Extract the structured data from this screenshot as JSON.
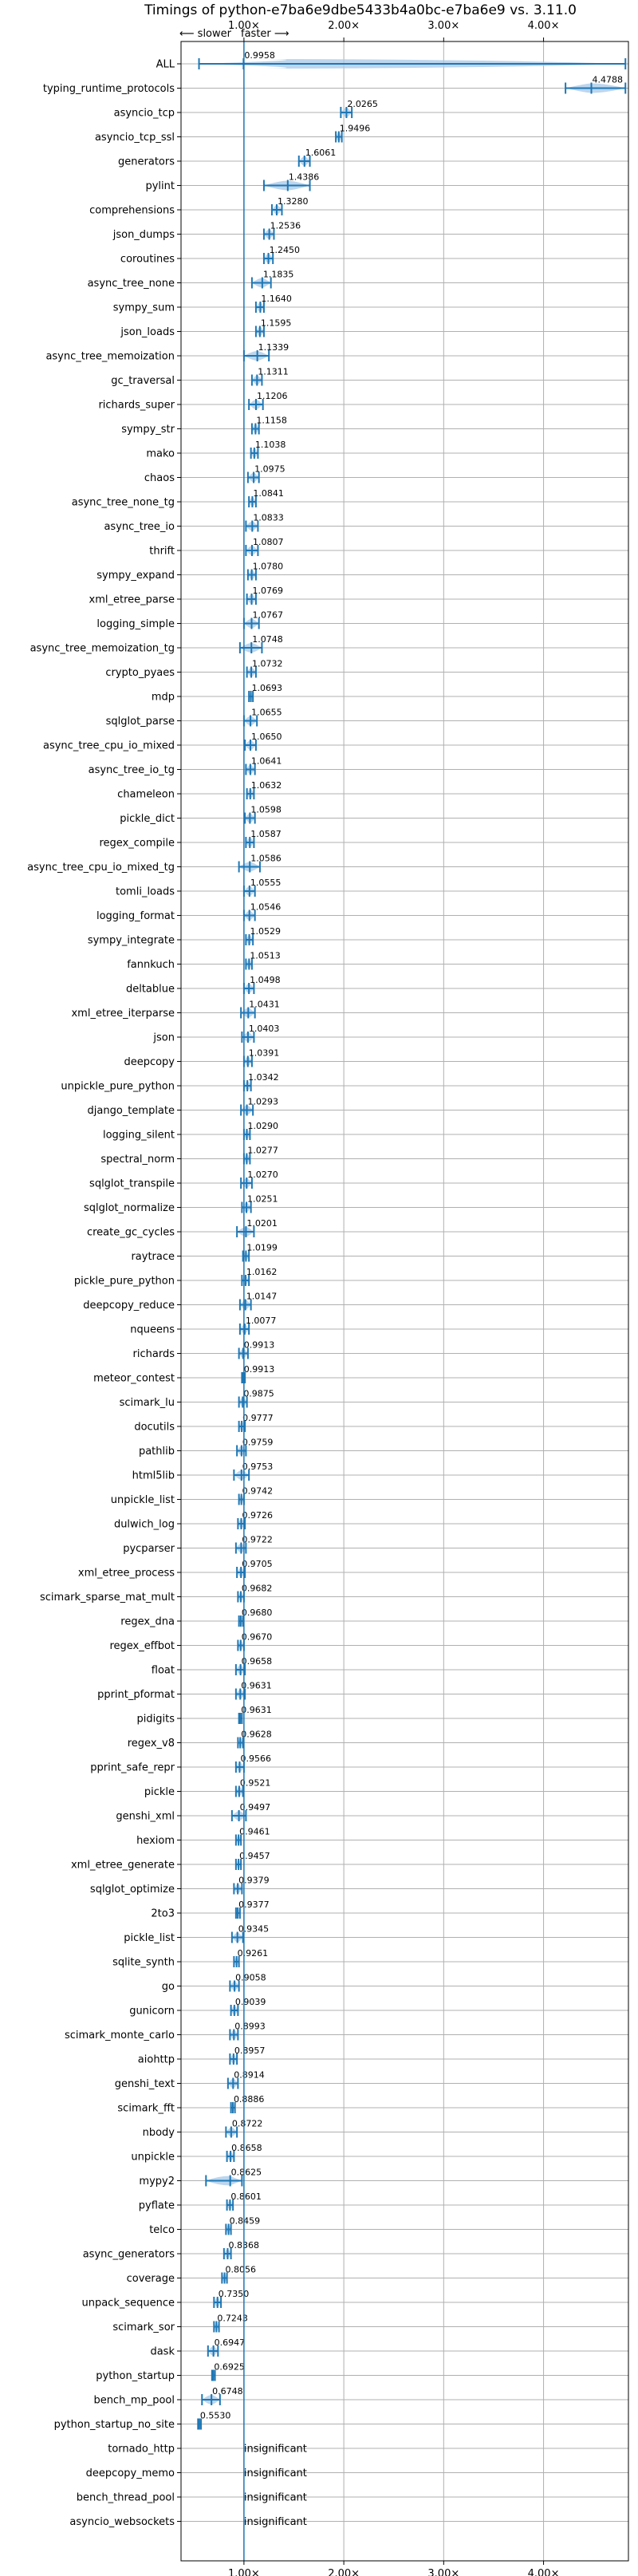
{
  "chart_data": {
    "type": "violin",
    "title": "Timings of python-e7ba6e9dbe5433b4a0bc-e7ba6e9 vs. 3.11.0",
    "direction_labels": {
      "slower": "⟵ slower",
      "faster": "faster ⟶"
    },
    "xticks": [
      "1.00×",
      "2.00×",
      "3.00×",
      "4.00×"
    ],
    "xtick_values": [
      1,
      2,
      3,
      4
    ],
    "xlim": [
      0.37,
      4.85
    ],
    "reference_line": 1.0,
    "grid": true,
    "insignificant_label": "insignificant",
    "colors": {
      "violin": "#a6c8e8",
      "mean": "#1f77b4",
      "axis": "#000000",
      "grid": "#b0b0b0"
    },
    "benchmarks": [
      {
        "name": "ALL",
        "value": 0.9958,
        "label": "0.9958",
        "lo": 0.55,
        "hi": 4.82
      },
      {
        "name": "typing_runtime_protocols",
        "value": 4.4788,
        "label": "4.4788",
        "lo": 4.22,
        "hi": 4.82
      },
      {
        "name": "asyncio_tcp",
        "value": 2.0265,
        "label": "2.0265",
        "lo": 1.97,
        "hi": 2.08
      },
      {
        "name": "asyncio_tcp_ssl",
        "value": 1.9496,
        "label": "1.9496",
        "lo": 1.92,
        "hi": 1.98
      },
      {
        "name": "generators",
        "value": 1.6061,
        "label": "1.6061",
        "lo": 1.55,
        "hi": 1.66
      },
      {
        "name": "pylint",
        "value": 1.4386,
        "label": "1.4386",
        "lo": 1.2,
        "hi": 1.66
      },
      {
        "name": "comprehensions",
        "value": 1.328,
        "label": "1.3280",
        "lo": 1.28,
        "hi": 1.38
      },
      {
        "name": "json_dumps",
        "value": 1.2536,
        "label": "1.2536",
        "lo": 1.2,
        "hi": 1.3
      },
      {
        "name": "coroutines",
        "value": 1.245,
        "label": "1.2450",
        "lo": 1.2,
        "hi": 1.29
      },
      {
        "name": "async_tree_none",
        "value": 1.1835,
        "label": "1.1835",
        "lo": 1.08,
        "hi": 1.27
      },
      {
        "name": "sympy_sum",
        "value": 1.164,
        "label": "1.1640",
        "lo": 1.12,
        "hi": 1.2
      },
      {
        "name": "json_loads",
        "value": 1.1595,
        "label": "1.1595",
        "lo": 1.12,
        "hi": 1.2
      },
      {
        "name": "async_tree_memoization",
        "value": 1.1339,
        "label": "1.1339",
        "lo": 1.0,
        "hi": 1.25
      },
      {
        "name": "gc_traversal",
        "value": 1.1311,
        "label": "1.1311",
        "lo": 1.08,
        "hi": 1.18
      },
      {
        "name": "richards_super",
        "value": 1.1206,
        "label": "1.1206",
        "lo": 1.05,
        "hi": 1.19
      },
      {
        "name": "sympy_str",
        "value": 1.1158,
        "label": "1.1158",
        "lo": 1.08,
        "hi": 1.15
      },
      {
        "name": "mako",
        "value": 1.1038,
        "label": "1.1038",
        "lo": 1.07,
        "hi": 1.14
      },
      {
        "name": "chaos",
        "value": 1.0975,
        "label": "1.0975",
        "lo": 1.04,
        "hi": 1.15
      },
      {
        "name": "async_tree_none_tg",
        "value": 1.0841,
        "label": "1.0841",
        "lo": 1.05,
        "hi": 1.12
      },
      {
        "name": "async_tree_io",
        "value": 1.0833,
        "label": "1.0833",
        "lo": 1.02,
        "hi": 1.14
      },
      {
        "name": "thrift",
        "value": 1.0807,
        "label": "1.0807",
        "lo": 1.02,
        "hi": 1.14
      },
      {
        "name": "sympy_expand",
        "value": 1.078,
        "label": "1.0780",
        "lo": 1.04,
        "hi": 1.12
      },
      {
        "name": "xml_etree_parse",
        "value": 1.0769,
        "label": "1.0769",
        "lo": 1.03,
        "hi": 1.12
      },
      {
        "name": "logging_simple",
        "value": 1.0767,
        "label": "1.0767",
        "lo": 1.0,
        "hi": 1.15
      },
      {
        "name": "async_tree_memoization_tg",
        "value": 1.0748,
        "label": "1.0748",
        "lo": 0.96,
        "hi": 1.18
      },
      {
        "name": "crypto_pyaes",
        "value": 1.0732,
        "label": "1.0732",
        "lo": 1.03,
        "hi": 1.12
      },
      {
        "name": "mdp",
        "value": 1.0693,
        "label": "1.0693",
        "lo": 1.05,
        "hi": 1.09
      },
      {
        "name": "sqlglot_parse",
        "value": 1.0655,
        "label": "1.0655",
        "lo": 1.0,
        "hi": 1.13
      },
      {
        "name": "async_tree_cpu_io_mixed",
        "value": 1.065,
        "label": "1.0650",
        "lo": 1.01,
        "hi": 1.12
      },
      {
        "name": "async_tree_io_tg",
        "value": 1.0641,
        "label": "1.0641",
        "lo": 1.02,
        "hi": 1.11
      },
      {
        "name": "chameleon",
        "value": 1.0632,
        "label": "1.0632",
        "lo": 1.03,
        "hi": 1.1
      },
      {
        "name": "pickle_dict",
        "value": 1.0598,
        "label": "1.0598",
        "lo": 1.01,
        "hi": 1.11
      },
      {
        "name": "regex_compile",
        "value": 1.0587,
        "label": "1.0587",
        "lo": 1.02,
        "hi": 1.1
      },
      {
        "name": "async_tree_cpu_io_mixed_tg",
        "value": 1.0586,
        "label": "1.0586",
        "lo": 0.95,
        "hi": 1.16
      },
      {
        "name": "tomli_loads",
        "value": 1.0555,
        "label": "1.0555",
        "lo": 1.0,
        "hi": 1.11
      },
      {
        "name": "logging_format",
        "value": 1.0546,
        "label": "1.0546",
        "lo": 1.0,
        "hi": 1.11
      },
      {
        "name": "sympy_integrate",
        "value": 1.0529,
        "label": "1.0529",
        "lo": 1.02,
        "hi": 1.09
      },
      {
        "name": "fannkuch",
        "value": 1.0513,
        "label": "1.0513",
        "lo": 1.02,
        "hi": 1.08
      },
      {
        "name": "deltablue",
        "value": 1.0498,
        "label": "1.0498",
        "lo": 1.0,
        "hi": 1.1
      },
      {
        "name": "xml_etree_iterparse",
        "value": 1.0431,
        "label": "1.0431",
        "lo": 0.97,
        "hi": 1.11
      },
      {
        "name": "json",
        "value": 1.0403,
        "label": "1.0403",
        "lo": 0.98,
        "hi": 1.1
      },
      {
        "name": "deepcopy",
        "value": 1.0391,
        "label": "1.0391",
        "lo": 1.0,
        "hi": 1.08
      },
      {
        "name": "unpickle_pure_python",
        "value": 1.0342,
        "label": "1.0342",
        "lo": 1.0,
        "hi": 1.07
      },
      {
        "name": "django_template",
        "value": 1.0293,
        "label": "1.0293",
        "lo": 0.97,
        "hi": 1.09
      },
      {
        "name": "logging_silent",
        "value": 1.029,
        "label": "1.0290",
        "lo": 1.0,
        "hi": 1.06
      },
      {
        "name": "spectral_norm",
        "value": 1.0277,
        "label": "1.0277",
        "lo": 1.0,
        "hi": 1.06
      },
      {
        "name": "sqlglot_transpile",
        "value": 1.027,
        "label": "1.0270",
        "lo": 0.97,
        "hi": 1.08
      },
      {
        "name": "sqlglot_normalize",
        "value": 1.0251,
        "label": "1.0251",
        "lo": 0.98,
        "hi": 1.07
      },
      {
        "name": "create_gc_cycles",
        "value": 1.0201,
        "label": "1.0201",
        "lo": 0.93,
        "hi": 1.1
      },
      {
        "name": "raytrace",
        "value": 1.0199,
        "label": "1.0199",
        "lo": 0.99,
        "hi": 1.05
      },
      {
        "name": "pickle_pure_python",
        "value": 1.0162,
        "label": "1.0162",
        "lo": 0.98,
        "hi": 1.05
      },
      {
        "name": "deepcopy_reduce",
        "value": 1.0147,
        "label": "1.0147",
        "lo": 0.96,
        "hi": 1.07
      },
      {
        "name": "nqueens",
        "value": 1.0077,
        "label": "1.0077",
        "lo": 0.96,
        "hi": 1.05
      },
      {
        "name": "richards",
        "value": 0.9913,
        "label": "0.9913",
        "lo": 0.95,
        "hi": 1.04
      },
      {
        "name": "meteor_contest",
        "value": 0.9913,
        "label": "0.9913",
        "lo": 0.98,
        "hi": 1.01
      },
      {
        "name": "scimark_lu",
        "value": 0.9875,
        "label": "0.9875",
        "lo": 0.95,
        "hi": 1.03
      },
      {
        "name": "docutils",
        "value": 0.9777,
        "label": "0.9777",
        "lo": 0.95,
        "hi": 1.01
      },
      {
        "name": "pathlib",
        "value": 0.9759,
        "label": "0.9759",
        "lo": 0.93,
        "hi": 1.02
      },
      {
        "name": "html5lib",
        "value": 0.9753,
        "label": "0.9753",
        "lo": 0.9,
        "hi": 1.05
      },
      {
        "name": "unpickle_list",
        "value": 0.9742,
        "label": "0.9742",
        "lo": 0.95,
        "hi": 1.0
      },
      {
        "name": "dulwich_log",
        "value": 0.9726,
        "label": "0.9726",
        "lo": 0.94,
        "hi": 1.01
      },
      {
        "name": "pycparser",
        "value": 0.9722,
        "label": "0.9722",
        "lo": 0.92,
        "hi": 1.02
      },
      {
        "name": "xml_etree_process",
        "value": 0.9705,
        "label": "0.9705",
        "lo": 0.93,
        "hi": 1.01
      },
      {
        "name": "scimark_sparse_mat_mult",
        "value": 0.9682,
        "label": "0.9682",
        "lo": 0.94,
        "hi": 1.0
      },
      {
        "name": "regex_dna",
        "value": 0.968,
        "label": "0.9680",
        "lo": 0.95,
        "hi": 0.99
      },
      {
        "name": "regex_effbot",
        "value": 0.967,
        "label": "0.9670",
        "lo": 0.94,
        "hi": 1.0
      },
      {
        "name": "float",
        "value": 0.9658,
        "label": "0.9658",
        "lo": 0.92,
        "hi": 1.01
      },
      {
        "name": "pprint_pformat",
        "value": 0.9631,
        "label": "0.9631",
        "lo": 0.92,
        "hi": 1.01
      },
      {
        "name": "pidigits",
        "value": 0.9631,
        "label": "0.9631",
        "lo": 0.95,
        "hi": 0.98
      },
      {
        "name": "regex_v8",
        "value": 0.9628,
        "label": "0.9628",
        "lo": 0.94,
        "hi": 0.99
      },
      {
        "name": "pprint_safe_repr",
        "value": 0.9566,
        "label": "0.9566",
        "lo": 0.92,
        "hi": 1.0
      },
      {
        "name": "pickle",
        "value": 0.9521,
        "label": "0.9521",
        "lo": 0.92,
        "hi": 0.99
      },
      {
        "name": "genshi_xml",
        "value": 0.9497,
        "label": "0.9497",
        "lo": 0.88,
        "hi": 1.02
      },
      {
        "name": "hexiom",
        "value": 0.9461,
        "label": "0.9461",
        "lo": 0.92,
        "hi": 0.97
      },
      {
        "name": "xml_etree_generate",
        "value": 0.9457,
        "label": "0.9457",
        "lo": 0.92,
        "hi": 0.97
      },
      {
        "name": "sqlglot_optimize",
        "value": 0.9379,
        "label": "0.9379",
        "lo": 0.9,
        "hi": 0.98
      },
      {
        "name": "2to3",
        "value": 0.9377,
        "label": "0.9377",
        "lo": 0.92,
        "hi": 0.96
      },
      {
        "name": "pickle_list",
        "value": 0.9345,
        "label": "0.9345",
        "lo": 0.88,
        "hi": 0.99
      },
      {
        "name": "sqlite_synth",
        "value": 0.9261,
        "label": "0.9261",
        "lo": 0.9,
        "hi": 0.95
      },
      {
        "name": "go",
        "value": 0.9058,
        "label": "0.9058",
        "lo": 0.86,
        "hi": 0.95
      },
      {
        "name": "gunicorn",
        "value": 0.9039,
        "label": "0.9039",
        "lo": 0.87,
        "hi": 0.94
      },
      {
        "name": "scimark_monte_carlo",
        "value": 0.8993,
        "label": "0.8993",
        "lo": 0.86,
        "hi": 0.94
      },
      {
        "name": "aiohttp",
        "value": 0.8957,
        "label": "0.8957",
        "lo": 0.86,
        "hi": 0.93
      },
      {
        "name": "genshi_text",
        "value": 0.8914,
        "label": "0.8914",
        "lo": 0.84,
        "hi": 0.94
      },
      {
        "name": "scimark_fft",
        "value": 0.8886,
        "label": "0.8886",
        "lo": 0.87,
        "hi": 0.91
      },
      {
        "name": "nbody",
        "value": 0.8722,
        "label": "0.8722",
        "lo": 0.82,
        "hi": 0.93
      },
      {
        "name": "unpickle",
        "value": 0.8658,
        "label": "0.8658",
        "lo": 0.83,
        "hi": 0.9
      },
      {
        "name": "mypy2",
        "value": 0.8625,
        "label": "0.8625",
        "lo": 0.62,
        "hi": 0.98
      },
      {
        "name": "pyflate",
        "value": 0.8601,
        "label": "0.8601",
        "lo": 0.83,
        "hi": 0.89
      },
      {
        "name": "telco",
        "value": 0.8459,
        "label": "0.8459",
        "lo": 0.82,
        "hi": 0.87
      },
      {
        "name": "async_generators",
        "value": 0.8368,
        "label": "0.8368",
        "lo": 0.8,
        "hi": 0.87
      },
      {
        "name": "coverage",
        "value": 0.8056,
        "label": "0.8056",
        "lo": 0.78,
        "hi": 0.83
      },
      {
        "name": "unpack_sequence",
        "value": 0.735,
        "label": "0.7350",
        "lo": 0.7,
        "hi": 0.77
      },
      {
        "name": "scimark_sor",
        "value": 0.7243,
        "label": "0.7243",
        "lo": 0.7,
        "hi": 0.75
      },
      {
        "name": "dask",
        "value": 0.6947,
        "label": "0.6947",
        "lo": 0.64,
        "hi": 0.74
      },
      {
        "name": "python_startup",
        "value": 0.6925,
        "label": "0.6925",
        "lo": 0.68,
        "hi": 0.71
      },
      {
        "name": "bench_mp_pool",
        "value": 0.6748,
        "label": "0.6748",
        "lo": 0.58,
        "hi": 0.76
      },
      {
        "name": "python_startup_no_site",
        "value": 0.553,
        "label": "0.5530",
        "lo": 0.54,
        "hi": 0.57
      },
      {
        "name": "tornado_http",
        "value": null,
        "label": "insignificant"
      },
      {
        "name": "deepcopy_memo",
        "value": null,
        "label": "insignificant"
      },
      {
        "name": "bench_thread_pool",
        "value": null,
        "label": "insignificant"
      },
      {
        "name": "asyncio_websockets",
        "value": null,
        "label": "insignificant"
      }
    ]
  }
}
